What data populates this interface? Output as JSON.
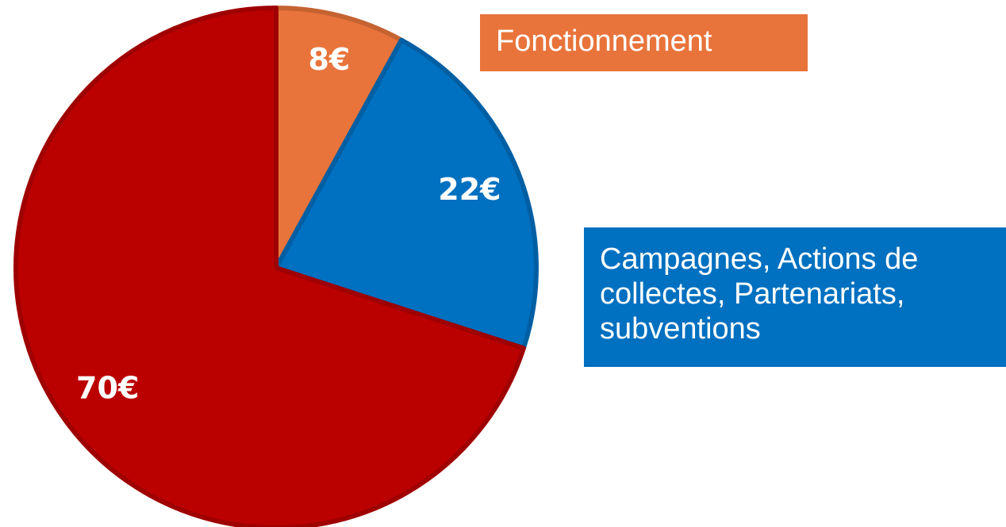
{
  "chart_data": {
    "type": "pie",
    "categories": [
      "Fonctionnement",
      "Campagnes, Actions de collectes, Partenariats, subventions",
      null
    ],
    "values": [
      8,
      22,
      70
    ],
    "value_labels": [
      "8€",
      "22€",
      "70€"
    ],
    "colors": [
      "#e8743b",
      "#0070c0",
      "#bb0000"
    ]
  }
}
